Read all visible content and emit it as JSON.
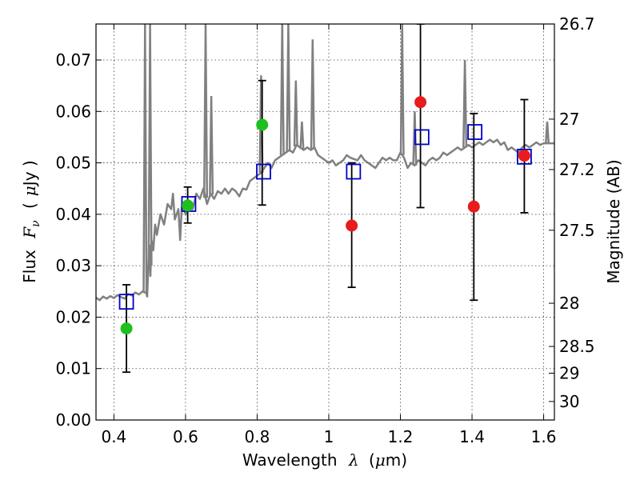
{
  "chart_data": {
    "type": "scatter",
    "xlabel": {
      "prefix": "Wavelength",
      "symbol": "λ",
      "unit_open": "(",
      "unit_mu": "μ",
      "unit_rest": "m)"
    },
    "ylabel": {
      "prefix": "Flux",
      "symbol": "F",
      "subscript": "ν",
      "unit_open": "(",
      "unit_mu": "μ",
      "unit_rest": "Jy )"
    },
    "y2label": "Magnitude (AB)",
    "xlim": [
      0.35,
      1.63
    ],
    "ylim": [
      0.0,
      0.077
    ],
    "xticks": [
      0.4,
      0.6,
      0.8,
      1.0,
      1.2,
      1.4,
      1.6
    ],
    "xtick_labels": [
      "0.4",
      "0.6",
      "0.8",
      "1",
      "1.2",
      "1.4",
      "1.6"
    ],
    "yticks": [
      0.0,
      0.01,
      0.02,
      0.03,
      0.04,
      0.05,
      0.06,
      0.07
    ],
    "ytick_labels": [
      "0.00",
      "0.01",
      "0.02",
      "0.03",
      "0.04",
      "0.05",
      "0.06",
      "0.07"
    ],
    "y2ticks": [
      {
        "label": "26.7",
        "flux": 0.077
      },
      {
        "label": "27",
        "flux": 0.0585
      },
      {
        "label": "27.2",
        "flux": 0.0487
      },
      {
        "label": "27.5",
        "flux": 0.0369
      },
      {
        "label": "28",
        "flux": 0.0227
      },
      {
        "label": "28.5",
        "flux": 0.0143
      },
      {
        "label": "29",
        "flux": 0.0091
      },
      {
        "label": "30",
        "flux": 0.0036
      }
    ],
    "grid": true,
    "colors": {
      "model": "#808080",
      "observed_green": "#1fbf1f",
      "observed_red": "#e81c1c",
      "model_box": "#0000cc",
      "errorbar": "#000000"
    },
    "series": [
      {
        "kind": "model_spectrum",
        "points": [
          [
            0.35,
            0.0238
          ],
          [
            0.36,
            0.0233
          ],
          [
            0.37,
            0.024
          ],
          [
            0.38,
            0.0236
          ],
          [
            0.39,
            0.0241
          ],
          [
            0.4,
            0.0237
          ],
          [
            0.41,
            0.0243
          ],
          [
            0.42,
            0.0239
          ],
          [
            0.43,
            0.0236
          ],
          [
            0.44,
            0.0245
          ],
          [
            0.45,
            0.0242
          ],
          [
            0.46,
            0.0248
          ],
          [
            0.47,
            0.0244
          ],
          [
            0.48,
            0.025
          ],
          [
            0.49,
            0.0247
          ],
          [
            0.493,
            0.024
          ],
          [
            0.496,
            0.03
          ],
          [
            0.499,
            0.034
          ],
          [
            0.502,
            0.028
          ],
          [
            0.505,
            0.035
          ],
          [
            0.51,
            0.033
          ],
          [
            0.515,
            0.038
          ],
          [
            0.52,
            0.036
          ],
          [
            0.53,
            0.04
          ],
          [
            0.54,
            0.038
          ],
          [
            0.55,
            0.042
          ],
          [
            0.56,
            0.041
          ],
          [
            0.565,
            0.044
          ],
          [
            0.57,
            0.039
          ],
          [
            0.58,
            0.041
          ],
          [
            0.585,
            0.035
          ],
          [
            0.59,
            0.042
          ],
          [
            0.6,
            0.04
          ],
          [
            0.61,
            0.042
          ],
          [
            0.62,
            0.041
          ],
          [
            0.63,
            0.044
          ],
          [
            0.64,
            0.043
          ],
          [
            0.65,
            0.045
          ],
          [
            0.66,
            0.042
          ],
          [
            0.67,
            0.044
          ],
          [
            0.68,
            0.043
          ],
          [
            0.69,
            0.0445
          ],
          [
            0.7,
            0.044
          ],
          [
            0.71,
            0.045
          ],
          [
            0.72,
            0.044
          ],
          [
            0.73,
            0.045
          ],
          [
            0.74,
            0.0445
          ],
          [
            0.75,
            0.0435
          ],
          [
            0.76,
            0.045
          ],
          [
            0.77,
            0.0448
          ],
          [
            0.78,
            0.0465
          ],
          [
            0.79,
            0.047
          ],
          [
            0.8,
            0.0475
          ],
          [
            0.81,
            0.048
          ],
          [
            0.82,
            0.049
          ],
          [
            0.83,
            0.05
          ],
          [
            0.84,
            0.049
          ],
          [
            0.85,
            0.0505
          ],
          [
            0.86,
            0.051
          ],
          [
            0.87,
            0.0515
          ],
          [
            0.88,
            0.052
          ],
          [
            0.89,
            0.0525
          ],
          [
            0.9,
            0.052
          ],
          [
            0.91,
            0.0535
          ],
          [
            0.92,
            0.053
          ],
          [
            0.93,
            0.0525
          ],
          [
            0.94,
            0.053
          ],
          [
            0.95,
            0.0525
          ],
          [
            0.96,
            0.053
          ],
          [
            0.97,
            0.0515
          ],
          [
            0.98,
            0.051
          ],
          [
            0.99,
            0.0505
          ],
          [
            1.0,
            0.05
          ],
          [
            1.01,
            0.0505
          ],
          [
            1.02,
            0.0495
          ],
          [
            1.03,
            0.05
          ],
          [
            1.04,
            0.0505
          ],
          [
            1.05,
            0.0515
          ],
          [
            1.06,
            0.051
          ],
          [
            1.08,
            0.0505
          ],
          [
            1.09,
            0.0515
          ],
          [
            1.1,
            0.0505
          ],
          [
            1.11,
            0.05
          ],
          [
            1.12,
            0.0495
          ],
          [
            1.13,
            0.049
          ],
          [
            1.14,
            0.05
          ],
          [
            1.15,
            0.051
          ],
          [
            1.16,
            0.0505
          ],
          [
            1.17,
            0.051
          ],
          [
            1.18,
            0.0505
          ],
          [
            1.19,
            0.0505
          ],
          [
            1.2,
            0.052
          ],
          [
            1.21,
            0.051
          ],
          [
            1.22,
            0.049
          ],
          [
            1.23,
            0.05
          ],
          [
            1.24,
            0.0495
          ],
          [
            1.25,
            0.0505
          ],
          [
            1.26,
            0.05
          ],
          [
            1.27,
            0.0495
          ],
          [
            1.28,
            0.0505
          ],
          [
            1.29,
            0.051
          ],
          [
            1.3,
            0.0505
          ],
          [
            1.31,
            0.051
          ],
          [
            1.32,
            0.052
          ],
          [
            1.33,
            0.0515
          ],
          [
            1.34,
            0.052
          ],
          [
            1.35,
            0.0525
          ],
          [
            1.36,
            0.053
          ],
          [
            1.37,
            0.0525
          ],
          [
            1.38,
            0.053
          ],
          [
            1.39,
            0.0535
          ],
          [
            1.4,
            0.053
          ],
          [
            1.41,
            0.0535
          ],
          [
            1.42,
            0.054
          ],
          [
            1.43,
            0.0535
          ],
          [
            1.44,
            0.054
          ],
          [
            1.45,
            0.0545
          ],
          [
            1.46,
            0.054
          ],
          [
            1.47,
            0.0545
          ],
          [
            1.48,
            0.0535
          ],
          [
            1.49,
            0.054
          ],
          [
            1.5,
            0.0525
          ],
          [
            1.51,
            0.053
          ],
          [
            1.52,
            0.0525
          ],
          [
            1.53,
            0.052
          ],
          [
            1.54,
            0.053
          ],
          [
            1.55,
            0.0535
          ],
          [
            1.56,
            0.053
          ],
          [
            1.57,
            0.0535
          ],
          [
            1.58,
            0.054
          ],
          [
            1.59,
            0.0535
          ],
          [
            1.6,
            0.0538
          ],
          [
            1.62,
            0.0538
          ],
          [
            1.63,
            0.0538
          ]
        ],
        "emission_lines": [
          {
            "x": 0.487,
            "peak": 0.077
          },
          {
            "x": 0.501,
            "peak": 0.077
          },
          {
            "x": 0.656,
            "peak": 0.077
          },
          {
            "x": 0.672,
            "peak": 0.063
          },
          {
            "x": 0.811,
            "peak": 0.067
          },
          {
            "x": 0.87,
            "peak": 0.077
          },
          {
            "x": 0.887,
            "peak": 0.077
          },
          {
            "x": 0.908,
            "peak": 0.066
          },
          {
            "x": 0.925,
            "peak": 0.058
          },
          {
            "x": 0.955,
            "peak": 0.074
          },
          {
            "x": 1.205,
            "peak": 0.077
          },
          {
            "x": 1.24,
            "peak": 0.06
          },
          {
            "x": 1.38,
            "peak": 0.07
          },
          {
            "x": 1.61,
            "peak": 0.058
          }
        ]
      },
      {
        "kind": "observed",
        "points": [
          {
            "x": 0.435,
            "y": 0.0178,
            "err_lo": 0.0093,
            "err_hi": 0.0263,
            "color": "green"
          },
          {
            "x": 0.606,
            "y": 0.0417,
            "err_lo": 0.0383,
            "err_hi": 0.0453,
            "color": "green"
          },
          {
            "x": 0.814,
            "y": 0.0574,
            "err_lo": 0.0418,
            "err_hi": 0.066,
            "color": "green"
          },
          {
            "x": 1.064,
            "y": 0.0378,
            "err_lo": 0.0258,
            "err_hi": 0.05,
            "color": "red"
          },
          {
            "x": 1.256,
            "y": 0.0618,
            "err_lo": 0.0413,
            "err_hi": 0.077,
            "color": "red"
          },
          {
            "x": 1.405,
            "y": 0.0415,
            "err_lo": 0.0233,
            "err_hi": 0.0596,
            "color": "red"
          },
          {
            "x": 1.546,
            "y": 0.0514,
            "err_lo": 0.0403,
            "err_hi": 0.0623,
            "color": "red"
          }
        ]
      },
      {
        "kind": "model_photometry",
        "points": [
          [
            0.435,
            0.023
          ],
          [
            0.609,
            0.042
          ],
          [
            0.818,
            0.0483
          ],
          [
            1.069,
            0.0483
          ],
          [
            1.26,
            0.055
          ],
          [
            1.408,
            0.056
          ],
          [
            1.546,
            0.0512
          ]
        ]
      }
    ]
  }
}
